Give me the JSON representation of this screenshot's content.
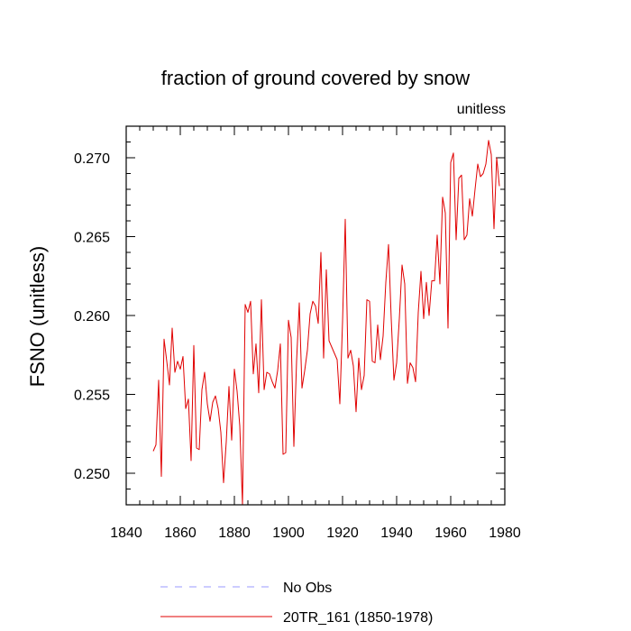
{
  "chart_data": {
    "type": "line",
    "title": "fraction of ground covered by snow",
    "units_label": "unitless",
    "ylabel": "FSNO  (unitless)",
    "xlabel": "",
    "xlim": [
      1840,
      1980
    ],
    "ylim": [
      0.248,
      0.272
    ],
    "xticks": [
      1840,
      1860,
      1880,
      1900,
      1920,
      1940,
      1960,
      1980
    ],
    "xtick_labels": [
      "1840",
      "1860",
      "1880",
      "1900",
      "1920",
      "1940",
      "1960",
      "1980"
    ],
    "yticks": [
      0.25,
      0.255,
      0.26,
      0.265,
      0.27
    ],
    "ytick_labels": [
      "0.250",
      "0.255",
      "0.260",
      "0.265",
      "0.270"
    ],
    "grid": false,
    "legend": [
      {
        "label": "No Obs",
        "color": "#9a9aff",
        "style": "dashed"
      },
      {
        "label": "20TR_161 (1850-1978)",
        "color": "#e00000",
        "style": "solid"
      }
    ],
    "series": [
      {
        "name": "20TR_161 (1850-1978)",
        "color": "#e00000",
        "x": [
          1850,
          1851,
          1852,
          1853,
          1854,
          1855,
          1856,
          1857,
          1858,
          1859,
          1860,
          1861,
          1862,
          1863,
          1864,
          1865,
          1866,
          1867,
          1868,
          1869,
          1870,
          1871,
          1872,
          1873,
          1874,
          1875,
          1876,
          1877,
          1878,
          1879,
          1880,
          1881,
          1882,
          1883,
          1884,
          1885,
          1886,
          1887,
          1888,
          1889,
          1890,
          1891,
          1892,
          1893,
          1894,
          1895,
          1896,
          1897,
          1898,
          1899,
          1900,
          1901,
          1902,
          1903,
          1904,
          1905,
          1906,
          1907,
          1908,
          1909,
          1910,
          1911,
          1912,
          1913,
          1914,
          1915,
          1916,
          1917,
          1918,
          1919,
          1920,
          1921,
          1922,
          1923,
          1924,
          1925,
          1926,
          1927,
          1928,
          1929,
          1930,
          1931,
          1932,
          1933,
          1934,
          1935,
          1936,
          1937,
          1938,
          1939,
          1940,
          1941,
          1942,
          1943,
          1944,
          1945,
          1946,
          1947,
          1948,
          1949,
          1950,
          1951,
          1952,
          1953,
          1954,
          1955,
          1956,
          1957,
          1958,
          1959,
          1960,
          1961,
          1962,
          1963,
          1964,
          1965,
          1966,
          1967,
          1968,
          1969,
          1970,
          1971,
          1972,
          1973,
          1974,
          1975,
          1976,
          1977,
          1978
        ],
        "values": [
          0.2514,
          0.2518,
          0.2559,
          0.2498,
          0.2585,
          0.2571,
          0.2556,
          0.2592,
          0.2564,
          0.2571,
          0.2566,
          0.2574,
          0.2541,
          0.2547,
          0.2508,
          0.2581,
          0.2516,
          0.2515,
          0.2553,
          0.2564,
          0.2544,
          0.2533,
          0.2545,
          0.2549,
          0.2541,
          0.2526,
          0.2494,
          0.252,
          0.2555,
          0.2521,
          0.2566,
          0.2552,
          0.253,
          0.248,
          0.2607,
          0.2602,
          0.2609,
          0.2563,
          0.2582,
          0.2551,
          0.261,
          0.2553,
          0.2564,
          0.2563,
          0.2558,
          0.2554,
          0.2565,
          0.2582,
          0.2512,
          0.2513,
          0.2597,
          0.2586,
          0.2517,
          0.2571,
          0.2608,
          0.2554,
          0.2565,
          0.2578,
          0.2601,
          0.2609,
          0.2606,
          0.2595,
          0.264,
          0.2573,
          0.2629,
          0.2584,
          0.258,
          0.2576,
          0.2572,
          0.2544,
          0.2596,
          0.2661,
          0.2573,
          0.2578,
          0.2568,
          0.2539,
          0.2573,
          0.2553,
          0.2562,
          0.261,
          0.2609,
          0.2571,
          0.257,
          0.2594,
          0.2572,
          0.2587,
          0.2621,
          0.2645,
          0.2598,
          0.2559,
          0.257,
          0.2598,
          0.2632,
          0.262,
          0.2557,
          0.257,
          0.2567,
          0.2558,
          0.2602,
          0.2628,
          0.2598,
          0.2621,
          0.26,
          0.2622,
          0.2622,
          0.2651,
          0.262,
          0.2675,
          0.2665,
          0.2592,
          0.2697,
          0.2703,
          0.2648,
          0.2687,
          0.2689,
          0.2648,
          0.2651,
          0.2674,
          0.2663,
          0.268,
          0.2696,
          0.2688,
          0.269,
          0.2696,
          0.2711,
          0.2702,
          0.2655,
          0.27,
          0.2682
        ]
      }
    ]
  }
}
